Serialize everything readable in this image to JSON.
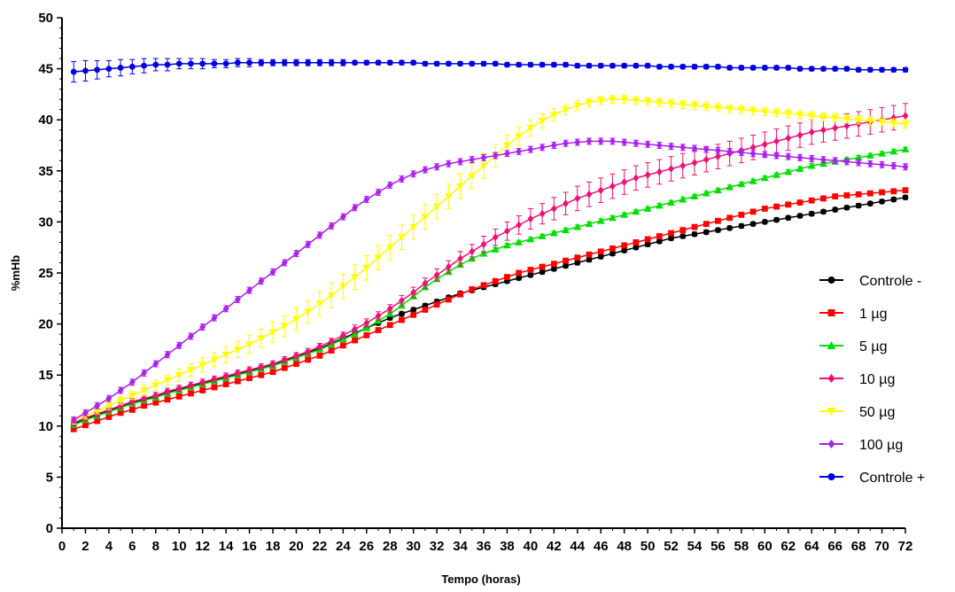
{
  "chart_data": {
    "type": "line",
    "title": "",
    "xlabel": "Tempo (horas)",
    "ylabel": "%mHb",
    "xlim": [
      0,
      72
    ],
    "ylim": [
      0,
      50
    ],
    "x_ticks": [
      0,
      2,
      4,
      6,
      8,
      10,
      12,
      14,
      16,
      18,
      20,
      22,
      24,
      26,
      28,
      30,
      32,
      34,
      36,
      38,
      40,
      42,
      44,
      46,
      48,
      50,
      52,
      54,
      56,
      58,
      60,
      62,
      64,
      66,
      68,
      70,
      72
    ],
    "y_ticks": [
      0,
      5,
      10,
      15,
      20,
      25,
      30,
      35,
      40,
      45,
      50
    ],
    "grid": false,
    "legend_position": "right",
    "x": [
      1,
      2,
      3,
      4,
      5,
      6,
      7,
      8,
      9,
      10,
      11,
      12,
      13,
      14,
      15,
      16,
      17,
      18,
      19,
      20,
      21,
      22,
      23,
      24,
      25,
      26,
      27,
      28,
      29,
      30,
      31,
      32,
      33,
      34,
      35,
      36,
      37,
      38,
      39,
      40,
      41,
      42,
      43,
      44,
      45,
      46,
      47,
      48,
      49,
      50,
      51,
      52,
      53,
      54,
      55,
      56,
      57,
      58,
      59,
      60,
      61,
      62,
      63,
      64,
      65,
      66,
      67,
      68,
      69,
      70,
      71,
      72
    ],
    "series": [
      {
        "name": "Controle -",
        "color": "#000000",
        "marker": "circle",
        "values": [
          10.2,
          10.7,
          11.1,
          11.5,
          11.9,
          12.3,
          12.6,
          12.9,
          13.3,
          13.6,
          13.9,
          14.2,
          14.5,
          14.8,
          15.1,
          15.4,
          15.7,
          16.0,
          16.4,
          16.8,
          17.2,
          17.6,
          18.1,
          18.6,
          19.1,
          19.6,
          20.1,
          20.6,
          21.0,
          21.4,
          21.8,
          22.2,
          22.6,
          23.0,
          23.3,
          23.6,
          23.9,
          24.2,
          24.5,
          24.8,
          25.1,
          25.4,
          25.7,
          26.0,
          26.3,
          26.6,
          26.9,
          27.2,
          27.5,
          27.8,
          28.1,
          28.4,
          28.6,
          28.8,
          29.0,
          29.2,
          29.4,
          29.6,
          29.8,
          30.0,
          30.2,
          30.4,
          30.6,
          30.8,
          31.0,
          31.2,
          31.4,
          31.6,
          31.8,
          32.0,
          32.2,
          32.4
        ],
        "errors": [
          0.2,
          0.2,
          0.2,
          0.2,
          0.2,
          0.2,
          0.2,
          0.2,
          0.2,
          0.2,
          0.2,
          0.2,
          0.2,
          0.2,
          0.2,
          0.2,
          0.2,
          0.2,
          0.2,
          0.2,
          0.2,
          0.2,
          0.2,
          0.2,
          0.2,
          0.2,
          0.2,
          0.2,
          0.2,
          0.2,
          0.2,
          0.2,
          0.2,
          0.2,
          0.2,
          0.2,
          0.2,
          0.2,
          0.2,
          0.2,
          0.2,
          0.2,
          0.2,
          0.2,
          0.2,
          0.2,
          0.2,
          0.2,
          0.2,
          0.2,
          0.2,
          0.2,
          0.2,
          0.2,
          0.2,
          0.2,
          0.2,
          0.2,
          0.2,
          0.2,
          0.2,
          0.2,
          0.2,
          0.2,
          0.2,
          0.2,
          0.2,
          0.2,
          0.2,
          0.2,
          0.2,
          0.2
        ]
      },
      {
        "name": "1 µg",
        "color": "#ff0000",
        "marker": "square",
        "values": [
          9.7,
          10.1,
          10.5,
          10.9,
          11.3,
          11.6,
          12.0,
          12.3,
          12.6,
          12.9,
          13.2,
          13.5,
          13.8,
          14.1,
          14.4,
          14.7,
          15.0,
          15.3,
          15.7,
          16.1,
          16.5,
          16.9,
          17.4,
          17.9,
          18.4,
          18.9,
          19.4,
          19.9,
          20.4,
          20.9,
          21.4,
          21.9,
          22.4,
          22.9,
          23.4,
          23.8,
          24.2,
          24.6,
          25.0,
          25.3,
          25.6,
          25.9,
          26.2,
          26.5,
          26.8,
          27.1,
          27.4,
          27.7,
          28.0,
          28.3,
          28.6,
          28.9,
          29.2,
          29.5,
          29.8,
          30.1,
          30.4,
          30.7,
          31.0,
          31.3,
          31.5,
          31.7,
          31.9,
          32.1,
          32.3,
          32.5,
          32.6,
          32.7,
          32.8,
          32.9,
          33.0,
          33.1
        ],
        "errors": [
          0.2,
          0.2,
          0.2,
          0.2,
          0.2,
          0.2,
          0.2,
          0.2,
          0.2,
          0.2,
          0.2,
          0.2,
          0.2,
          0.2,
          0.2,
          0.2,
          0.2,
          0.2,
          0.2,
          0.2,
          0.2,
          0.2,
          0.2,
          0.2,
          0.2,
          0.2,
          0.2,
          0.2,
          0.2,
          0.2,
          0.2,
          0.2,
          0.2,
          0.2,
          0.2,
          0.2,
          0.2,
          0.2,
          0.2,
          0.2,
          0.2,
          0.2,
          0.2,
          0.2,
          0.2,
          0.2,
          0.2,
          0.2,
          0.2,
          0.2,
          0.2,
          0.2,
          0.2,
          0.2,
          0.2,
          0.2,
          0.2,
          0.2,
          0.2,
          0.2,
          0.2,
          0.2,
          0.2,
          0.2,
          0.2,
          0.2,
          0.2,
          0.2,
          0.2,
          0.2,
          0.2,
          0.2
        ]
      },
      {
        "name": "5 µg",
        "color": "#00dd00",
        "marker": "triangle",
        "values": [
          10.1,
          10.6,
          11.0,
          11.4,
          11.8,
          12.2,
          12.5,
          12.8,
          13.2,
          13.5,
          13.8,
          14.1,
          14.4,
          14.7,
          15.0,
          15.3,
          15.6,
          15.9,
          16.3,
          16.7,
          17.1,
          17.5,
          18.0,
          18.5,
          19.0,
          19.6,
          20.3,
          21.0,
          21.8,
          22.7,
          23.6,
          24.4,
          25.1,
          25.8,
          26.4,
          26.9,
          27.3,
          27.7,
          28.0,
          28.3,
          28.6,
          28.9,
          29.2,
          29.5,
          29.8,
          30.1,
          30.4,
          30.7,
          31.0,
          31.3,
          31.6,
          31.9,
          32.2,
          32.5,
          32.8,
          33.1,
          33.4,
          33.7,
          34.0,
          34.3,
          34.6,
          34.9,
          35.2,
          35.5,
          35.7,
          35.9,
          36.1,
          36.3,
          36.5,
          36.7,
          36.9,
          37.1
        ],
        "errors": [
          0.2,
          0.2,
          0.2,
          0.2,
          0.2,
          0.2,
          0.2,
          0.2,
          0.2,
          0.2,
          0.2,
          0.2,
          0.2,
          0.2,
          0.2,
          0.2,
          0.2,
          0.2,
          0.2,
          0.2,
          0.2,
          0.2,
          0.2,
          0.2,
          0.2,
          0.2,
          0.2,
          0.2,
          0.2,
          0.2,
          0.2,
          0.2,
          0.2,
          0.2,
          0.2,
          0.2,
          0.2,
          0.2,
          0.2,
          0.2,
          0.2,
          0.2,
          0.2,
          0.2,
          0.2,
          0.2,
          0.2,
          0.2,
          0.2,
          0.2,
          0.2,
          0.2,
          0.2,
          0.2,
          0.2,
          0.2,
          0.2,
          0.2,
          0.2,
          0.2,
          0.2,
          0.2,
          0.2,
          0.2,
          0.2,
          0.2,
          0.2,
          0.2,
          0.2,
          0.2,
          0.2,
          0.2
        ]
      },
      {
        "name": "10 µg",
        "color": "#ee1177",
        "marker": "diamond",
        "values": [
          10.3,
          10.8,
          11.2,
          11.6,
          12.0,
          12.4,
          12.7,
          13.0,
          13.4,
          13.7,
          14.0,
          14.3,
          14.6,
          14.9,
          15.2,
          15.5,
          15.8,
          16.1,
          16.5,
          16.9,
          17.3,
          17.8,
          18.3,
          18.9,
          19.5,
          20.1,
          20.8,
          21.5,
          22.3,
          23.1,
          24.0,
          24.8,
          25.6,
          26.4,
          27.1,
          27.8,
          28.5,
          29.1,
          29.7,
          30.3,
          30.8,
          31.3,
          31.8,
          32.3,
          32.7,
          33.1,
          33.5,
          33.9,
          34.3,
          34.6,
          34.9,
          35.2,
          35.5,
          35.8,
          36.1,
          36.4,
          36.7,
          37.0,
          37.3,
          37.6,
          37.9,
          38.2,
          38.5,
          38.8,
          39.0,
          39.2,
          39.4,
          39.6,
          39.8,
          40.0,
          40.2,
          40.4
        ],
        "errors": [
          0.3,
          0.3,
          0.3,
          0.3,
          0.3,
          0.3,
          0.3,
          0.3,
          0.3,
          0.3,
          0.3,
          0.3,
          0.3,
          0.3,
          0.3,
          0.3,
          0.3,
          0.3,
          0.3,
          0.3,
          0.3,
          0.3,
          0.3,
          0.3,
          0.4,
          0.4,
          0.4,
          0.4,
          0.5,
          0.5,
          0.5,
          0.6,
          0.6,
          0.7,
          0.7,
          0.8,
          0.8,
          0.9,
          0.9,
          1.0,
          1.0,
          1.1,
          1.1,
          1.2,
          1.2,
          1.2,
          1.2,
          1.2,
          1.2,
          1.2,
          1.2,
          1.2,
          1.2,
          1.2,
          1.2,
          1.2,
          1.2,
          1.2,
          1.2,
          1.2,
          1.2,
          1.2,
          1.2,
          1.2,
          1.2,
          1.2,
          1.2,
          1.2,
          1.2,
          1.2,
          1.2,
          1.2
        ]
      },
      {
        "name": "50 µg",
        "color": "#ffff00",
        "marker": "triangle-down",
        "values": [
          10.5,
          11.0,
          11.5,
          12.0,
          12.5,
          13.0,
          13.5,
          14.0,
          14.5,
          15.0,
          15.5,
          16.0,
          16.5,
          17.0,
          17.5,
          18.0,
          18.6,
          19.2,
          19.8,
          20.5,
          21.2,
          22.0,
          22.8,
          23.7,
          24.6,
          25.5,
          26.5,
          27.5,
          28.5,
          29.5,
          30.5,
          31.5,
          32.5,
          33.5,
          34.5,
          35.5,
          36.5,
          37.5,
          38.4,
          39.2,
          39.9,
          40.5,
          41.0,
          41.4,
          41.7,
          41.9,
          42.0,
          42.0,
          41.9,
          41.8,
          41.7,
          41.6,
          41.5,
          41.4,
          41.3,
          41.2,
          41.1,
          41.0,
          40.9,
          40.8,
          40.7,
          40.6,
          40.5,
          40.4,
          40.3,
          40.2,
          40.1,
          40.0,
          39.9,
          39.8,
          39.7,
          39.6
        ],
        "errors": [
          0.3,
          0.3,
          0.3,
          0.4,
          0.4,
          0.4,
          0.5,
          0.5,
          0.5,
          0.6,
          0.6,
          0.7,
          0.7,
          0.8,
          0.8,
          0.9,
          0.9,
          1.0,
          1.0,
          1.1,
          1.1,
          1.2,
          1.2,
          1.2,
          1.2,
          1.2,
          1.2,
          1.2,
          1.2,
          1.2,
          1.2,
          1.2,
          1.2,
          1.2,
          1.2,
          1.2,
          1.1,
          1.0,
          0.9,
          0.8,
          0.7,
          0.6,
          0.5,
          0.5,
          0.4,
          0.4,
          0.4,
          0.4,
          0.4,
          0.4,
          0.4,
          0.4,
          0.4,
          0.4,
          0.4,
          0.4,
          0.4,
          0.4,
          0.4,
          0.4,
          0.4,
          0.4,
          0.4,
          0.4,
          0.4,
          0.4,
          0.4,
          0.4,
          0.4,
          0.4,
          0.4,
          0.4
        ]
      },
      {
        "name": "100 µg",
        "color": "#aa22ee",
        "marker": "diamond",
        "values": [
          10.6,
          11.3,
          12.0,
          12.7,
          13.5,
          14.3,
          15.2,
          16.1,
          17.0,
          17.9,
          18.8,
          19.7,
          20.6,
          21.5,
          22.4,
          23.3,
          24.2,
          25.1,
          26.0,
          26.9,
          27.8,
          28.7,
          29.6,
          30.5,
          31.4,
          32.2,
          32.9,
          33.6,
          34.2,
          34.7,
          35.1,
          35.4,
          35.7,
          35.9,
          36.1,
          36.3,
          36.5,
          36.7,
          36.9,
          37.1,
          37.3,
          37.5,
          37.7,
          37.8,
          37.9,
          37.9,
          37.9,
          37.8,
          37.7,
          37.6,
          37.5,
          37.4,
          37.3,
          37.2,
          37.1,
          37.0,
          36.9,
          36.8,
          36.7,
          36.6,
          36.5,
          36.4,
          36.3,
          36.2,
          36.1,
          36.0,
          35.9,
          35.8,
          35.7,
          35.6,
          35.5,
          35.4
        ],
        "errors": [
          0.3,
          0.3,
          0.3,
          0.3,
          0.3,
          0.3,
          0.3,
          0.3,
          0.3,
          0.3,
          0.3,
          0.3,
          0.3,
          0.3,
          0.3,
          0.3,
          0.3,
          0.3,
          0.3,
          0.3,
          0.3,
          0.3,
          0.3,
          0.3,
          0.3,
          0.3,
          0.3,
          0.3,
          0.3,
          0.3,
          0.3,
          0.3,
          0.3,
          0.3,
          0.3,
          0.3,
          0.3,
          0.3,
          0.3,
          0.3,
          0.3,
          0.3,
          0.3,
          0.3,
          0.3,
          0.3,
          0.3,
          0.3,
          0.3,
          0.3,
          0.3,
          0.3,
          0.3,
          0.3,
          0.3,
          0.3,
          0.3,
          0.3,
          0.3,
          0.3,
          0.3,
          0.3,
          0.3,
          0.3,
          0.3,
          0.3,
          0.3,
          0.3,
          0.3,
          0.3,
          0.3,
          0.3
        ]
      },
      {
        "name": "Controle +",
        "color": "#0000dd",
        "marker": "circle",
        "values": [
          44.7,
          44.8,
          44.9,
          45.0,
          45.1,
          45.2,
          45.3,
          45.4,
          45.4,
          45.5,
          45.5,
          45.5,
          45.5,
          45.5,
          45.6,
          45.6,
          45.6,
          45.6,
          45.6,
          45.6,
          45.6,
          45.6,
          45.6,
          45.6,
          45.6,
          45.6,
          45.6,
          45.6,
          45.6,
          45.6,
          45.5,
          45.5,
          45.5,
          45.5,
          45.5,
          45.5,
          45.5,
          45.4,
          45.4,
          45.4,
          45.4,
          45.4,
          45.4,
          45.3,
          45.3,
          45.3,
          45.3,
          45.3,
          45.3,
          45.3,
          45.2,
          45.2,
          45.2,
          45.2,
          45.2,
          45.2,
          45.1,
          45.1,
          45.1,
          45.1,
          45.1,
          45.1,
          45.0,
          45.0,
          45.0,
          45.0,
          45.0,
          44.9,
          44.9,
          44.9,
          44.9,
          44.9
        ],
        "errors": [
          1.0,
          1.0,
          0.9,
          0.8,
          0.8,
          0.7,
          0.7,
          0.6,
          0.6,
          0.5,
          0.5,
          0.5,
          0.4,
          0.4,
          0.4,
          0.4,
          0.3,
          0.3,
          0.3,
          0.3,
          0.3,
          0.3,
          0.3,
          0.3,
          0.2,
          0.2,
          0.2,
          0.2,
          0.2,
          0.2,
          0.2,
          0.2,
          0.2,
          0.2,
          0.2,
          0.2,
          0.2,
          0.2,
          0.2,
          0.2,
          0.2,
          0.2,
          0.2,
          0.2,
          0.2,
          0.2,
          0.2,
          0.2,
          0.2,
          0.2,
          0.2,
          0.2,
          0.2,
          0.2,
          0.2,
          0.2,
          0.2,
          0.2,
          0.2,
          0.2,
          0.2,
          0.2,
          0.2,
          0.2,
          0.2,
          0.2,
          0.2,
          0.2,
          0.2,
          0.2,
          0.2,
          0.2
        ]
      }
    ]
  }
}
